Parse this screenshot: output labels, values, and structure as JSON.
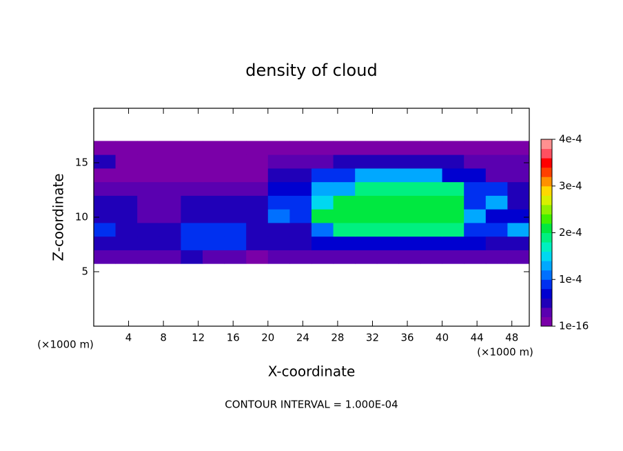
{
  "chart_data": {
    "type": "contour",
    "title": "density of cloud",
    "x_label": "X-coordinate",
    "y_label": "Z-coordinate",
    "x_unit_left": "(×1000 m)",
    "x_unit_right": "(×1000 m)",
    "footer": "CONTOUR INTERVAL = 1.000E-04",
    "xlim": [
      0,
      50
    ],
    "ylim": [
      0,
      20
    ],
    "xticks": [
      4,
      8,
      12,
      16,
      20,
      24,
      28,
      32,
      36,
      40,
      44,
      48
    ],
    "yticks": [
      5,
      10,
      15
    ],
    "x": [
      0,
      2.5,
      5,
      7.5,
      10,
      12.5,
      15,
      17.5,
      20,
      22.5,
      25,
      27.5,
      30,
      32.5,
      35,
      37.5,
      40,
      42.5,
      45,
      47.5,
      50
    ],
    "y": [
      5.75,
      7,
      8.25,
      9.5,
      10.75,
      12,
      13.25,
      14.5,
      15.75,
      17
    ],
    "values": [
      [
        3e-05,
        3e-05,
        3e-05,
        3e-05,
        5e-05,
        4e-05,
        3e-05,
        2e-05,
        3e-05,
        3e-05,
        4e-05,
        4e-05,
        4e-05,
        4e-05,
        4e-05,
        4e-05,
        4e-05,
        4e-05,
        3e-05,
        3e-05
      ],
      [
        6e-05,
        6e-05,
        6e-05,
        6e-05,
        9e-05,
        9e-05,
        9e-05,
        5e-05,
        5e-05,
        5e-05,
        7e-05,
        7e-05,
        7e-05,
        7e-05,
        7e-05,
        7e-05,
        7e-05,
        7e-05,
        6e-05,
        6e-05
      ],
      [
        0.0001,
        5e-05,
        5e-05,
        5e-05,
        9e-05,
        9e-05,
        9e-05,
        6e-05,
        6e-05,
        6e-05,
        0.00012,
        0.0002,
        0.0002,
        0.0002,
        0.0002,
        0.0002,
        0.0002,
        0.0001,
        0.0001,
        0.00013
      ],
      [
        6e-05,
        6e-05,
        4e-05,
        4e-05,
        5e-05,
        5e-05,
        6e-05,
        6e-05,
        0.00011,
        9e-05,
        0.00021,
        0.00021,
        0.00021,
        0.00021,
        0.00021,
        0.00021,
        0.00021,
        0.00014,
        8e-05,
        8e-05
      ],
      [
        5e-05,
        5e-05,
        4e-05,
        4e-05,
        6e-05,
        6e-05,
        5e-05,
        5e-05,
        9e-05,
        9e-05,
        0.00015,
        0.00021,
        0.00021,
        0.00021,
        0.00021,
        0.00021,
        0.00021,
        0.0001,
        0.00014,
        6e-05
      ],
      [
        3.5e-05,
        3.5e-05,
        3.5e-05,
        3.5e-05,
        4e-05,
        4e-05,
        4e-05,
        4e-05,
        8e-05,
        8e-05,
        0.00014,
        0.00014,
        0.0002,
        0.0002,
        0.0002,
        0.0002,
        0.0002,
        9e-05,
        9e-05,
        5e-05
      ],
      [
        2e-05,
        2e-05,
        2e-05,
        2e-05,
        2e-05,
        2e-05,
        2e-05,
        2e-05,
        5e-05,
        5e-05,
        9e-05,
        9e-05,
        0.00014,
        0.00014,
        0.00014,
        0.00014,
        8e-05,
        8e-05,
        4e-05,
        4e-05
      ],
      [
        5e-05,
        1.5e-05,
        1.5e-05,
        1.5e-05,
        1.5e-05,
        1.5e-05,
        1.5e-05,
        1.5e-05,
        3e-05,
        3e-05,
        3e-05,
        6e-05,
        6e-05,
        6e-05,
        6e-05,
        6e-05,
        6e-05,
        3e-05,
        3e-05,
        3e-05
      ],
      [
        5e-06,
        5e-06,
        5e-06,
        5e-06,
        5e-06,
        5e-06,
        5e-06,
        5e-06,
        5e-06,
        5e-06,
        5e-06,
        5e-06,
        5e-06,
        5e-06,
        5e-06,
        5e-06,
        5e-06,
        5e-06,
        5e-06,
        5e-06
      ]
    ],
    "clim": [
      1e-16,
      0.0004
    ],
    "cticks": [
      {
        "value": 1e-16,
        "label": "1e-16"
      },
      {
        "value": 0.0001,
        "label": "1e-4"
      },
      {
        "value": 0.0002,
        "label": "2e-4"
      },
      {
        "value": 0.0003,
        "label": "3e-4"
      },
      {
        "value": 0.0004,
        "label": "4e-4"
      }
    ],
    "colormap": [
      "#7a00a8",
      "#5a00b0",
      "#2000b8",
      "#0000d0",
      "#0030f0",
      "#0070ff",
      "#00a8ff",
      "#00d8f0",
      "#00f0c0",
      "#00f080",
      "#00e840",
      "#40f000",
      "#90f000",
      "#d8f000",
      "#ffd800",
      "#ff9000",
      "#ff4000",
      "#ff0000",
      "#ff5060",
      "#ff9090"
    ]
  }
}
